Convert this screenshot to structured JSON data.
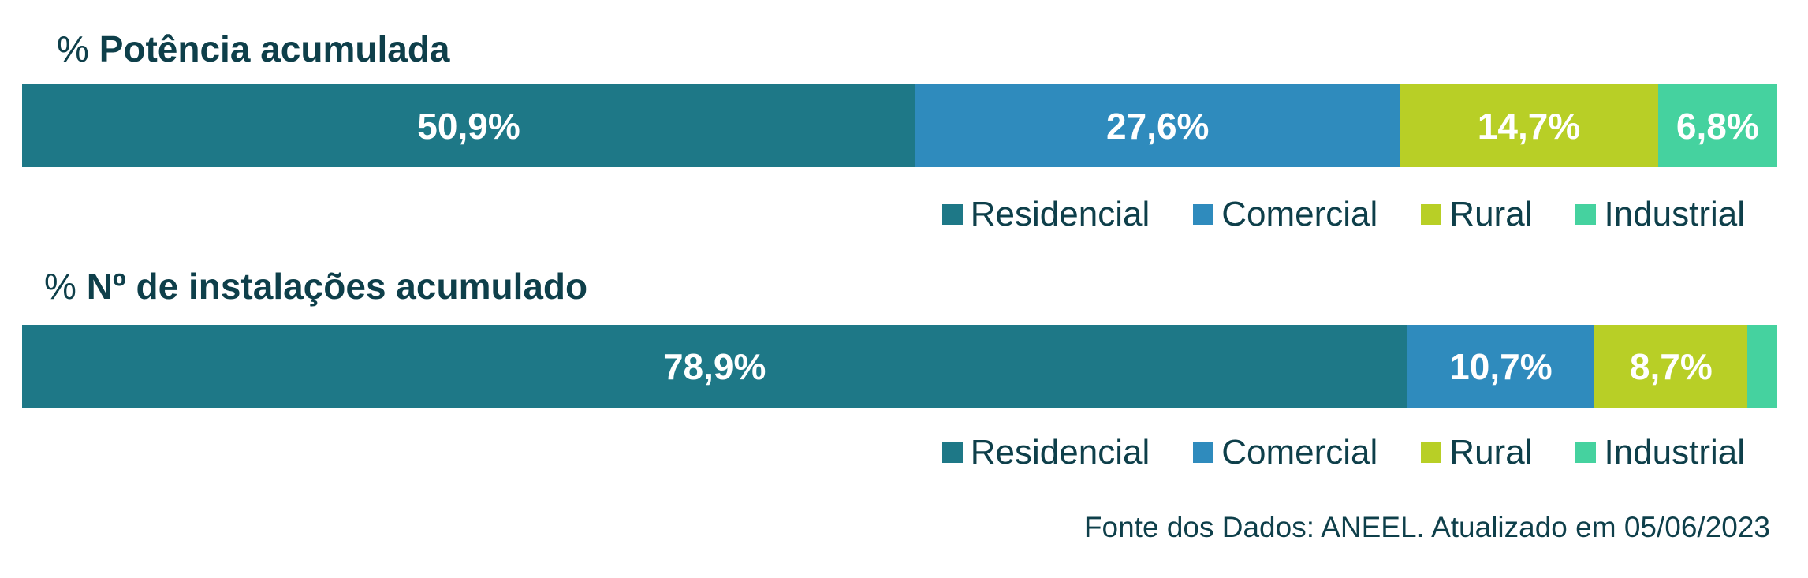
{
  "colors": {
    "residencial": "#1e7887",
    "comercial": "#2f8bbd",
    "rural": "#b8cf26",
    "industrial": "#45d29f",
    "text": "#0e3f4a"
  },
  "chart_data": [
    {
      "type": "bar",
      "orientation": "horizontal-stacked-100",
      "title_prefix": "%",
      "title": "Potência acumulada",
      "series": [
        {
          "name": "Residencial",
          "value": 50.9,
          "label": "50,9%",
          "color": "#1e7887"
        },
        {
          "name": "Comercial",
          "value": 27.6,
          "label": "27,6%",
          "color": "#2f8bbd"
        },
        {
          "name": "Rural",
          "value": 14.7,
          "label": "14,7%",
          "color": "#b8cf26"
        },
        {
          "name": "Industrial",
          "value": 6.8,
          "label": "6,8%",
          "color": "#45d29f"
        }
      ],
      "legend_position": "bottom-right"
    },
    {
      "type": "bar",
      "orientation": "horizontal-stacked-100",
      "title_prefix": "%",
      "title": "Nº de instalações acumulado",
      "series": [
        {
          "name": "Residencial",
          "value": 78.9,
          "label": "78,9%",
          "color": "#1e7887"
        },
        {
          "name": "Comercial",
          "value": 10.7,
          "label": "10,7%",
          "color": "#2f8bbd"
        },
        {
          "name": "Rural",
          "value": 8.7,
          "label": "8,7%",
          "color": "#b8cf26"
        },
        {
          "name": "Industrial",
          "value": 1.7,
          "label": "",
          "color": "#45d29f"
        }
      ],
      "legend_position": "bottom-right"
    }
  ],
  "source": "Fonte dos Dados: ANEEL. Atualizado em 05/06/2023"
}
